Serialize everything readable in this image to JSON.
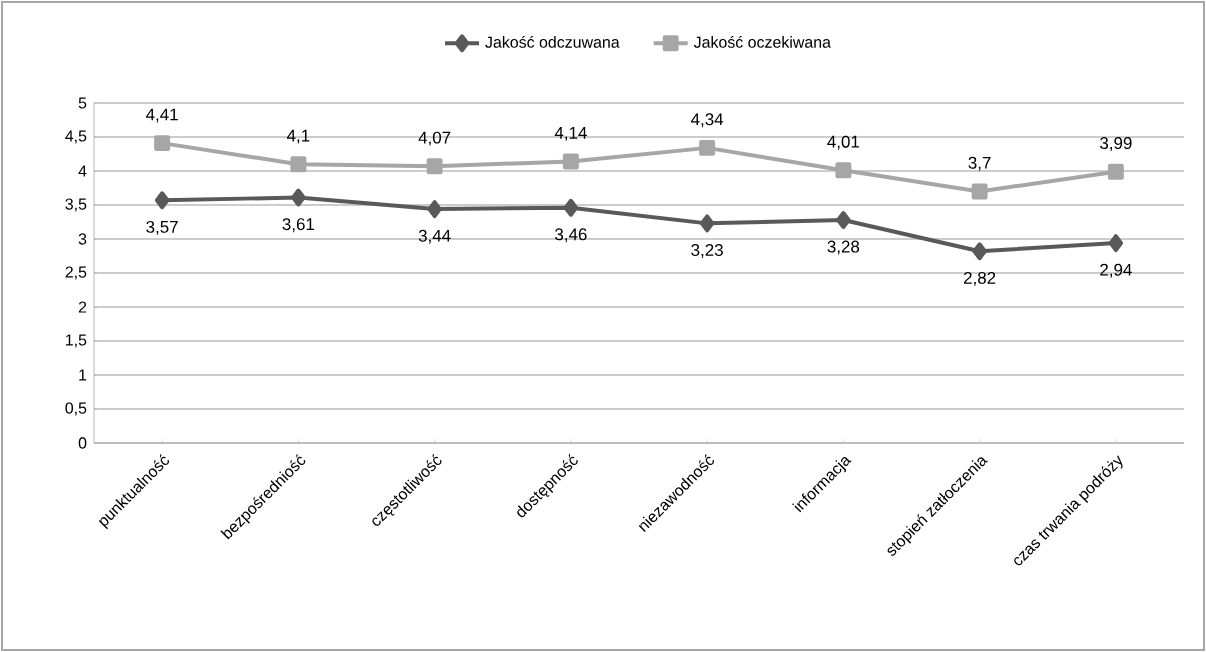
{
  "chart_data": {
    "type": "line",
    "categories": [
      "punktualność",
      "bezpośredniość",
      "częstotliwość",
      "dostępność",
      "niezawodność",
      "informacja",
      "stopień zatłoczenia",
      "czas trwania podróży"
    ],
    "series": [
      {
        "name": "Jakość odczuwana",
        "color": "#595959",
        "marker": "diamond",
        "values": [
          3.57,
          3.61,
          3.44,
          3.46,
          3.23,
          3.28,
          2.82,
          2.94
        ],
        "value_labels": [
          "3,57",
          "3,61",
          "3,44",
          "3,46",
          "3,23",
          "3,28",
          "2,82",
          "2,94"
        ]
      },
      {
        "name": "Jakość oczekiwana",
        "color": "#a6a6a6",
        "marker": "square",
        "values": [
          4.41,
          4.1,
          4.07,
          4.14,
          4.34,
          4.01,
          3.7,
          3.99
        ],
        "value_labels": [
          "4,41",
          "4,1",
          "4,07",
          "4,14",
          "4,34",
          "4,01",
          "3,7",
          "3,99"
        ]
      }
    ],
    "ylim": [
      0,
      5
    ],
    "yticks": [
      0,
      {
        "value": 0.5,
        "label": "0,5"
      },
      1,
      {
        "value": 1.5,
        "label": "1,5"
      },
      2,
      {
        "value": 2.5,
        "label": "2,5"
      },
      3,
      {
        "value": 3.5,
        "label": "3,5"
      },
      4,
      {
        "value": 4.5,
        "label": "4,5"
      },
      5
    ],
    "grid": "y",
    "legend": "top",
    "line_style": "solid"
  }
}
